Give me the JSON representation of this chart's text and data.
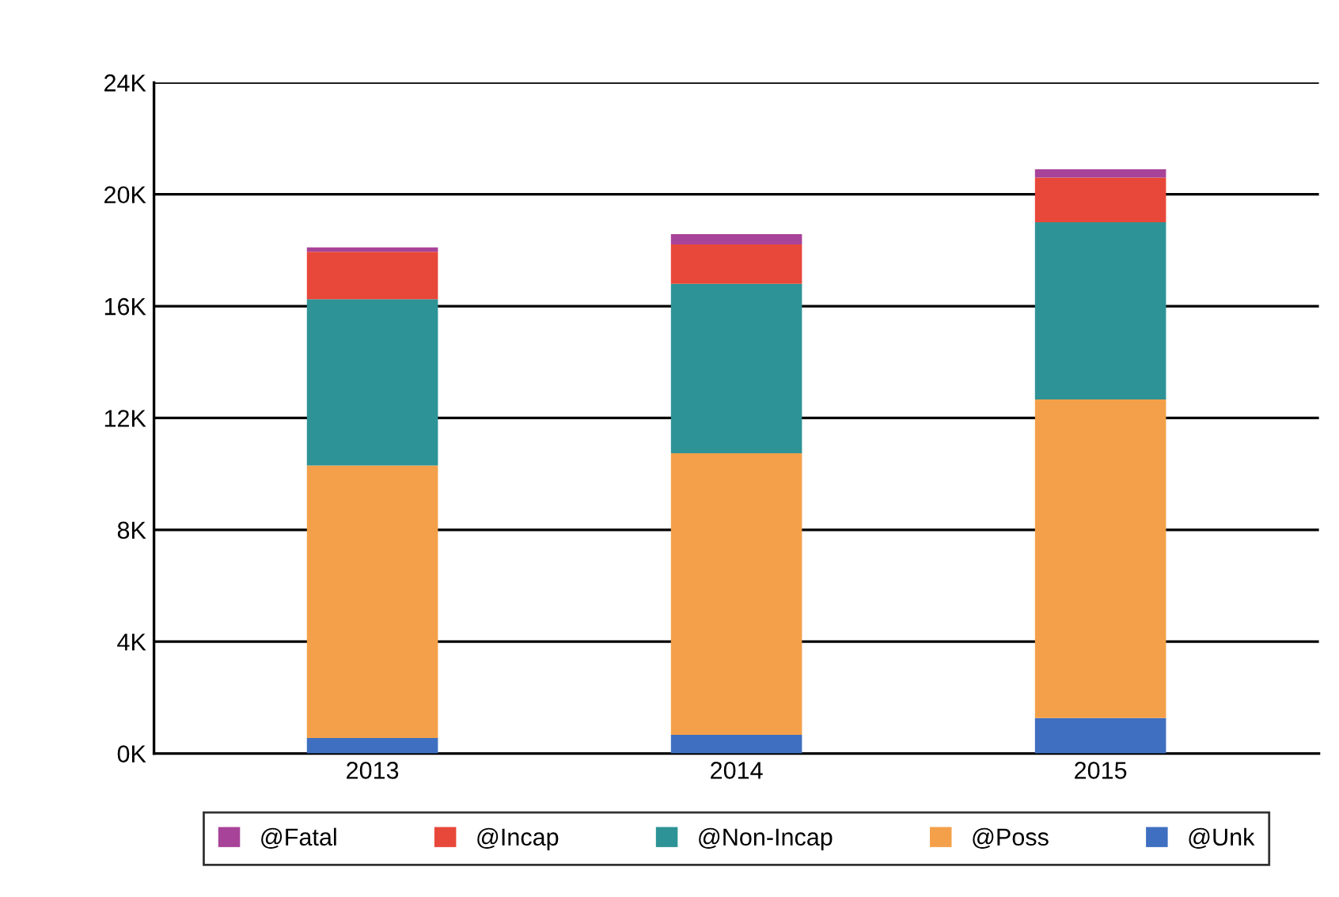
{
  "chart_data": {
    "type": "bar",
    "stacked": true,
    "categories": [
      "2013",
      "2014",
      "2015"
    ],
    "series": [
      {
        "name": "@Unk",
        "color": "#3f6fc0",
        "values": [
          0.55,
          0.67,
          1.27
        ]
      },
      {
        "name": "@Poss",
        "color": "#f4a04a",
        "values": [
          9.75,
          10.07,
          11.39
        ]
      },
      {
        "name": "@Non-Incap",
        "color": "#2e9396",
        "values": [
          5.95,
          6.06,
          6.34
        ]
      },
      {
        "name": "@Incap",
        "color": "#e8483a",
        "values": [
          1.7,
          1.41,
          1.6
        ]
      },
      {
        "name": "@Fatal",
        "color": "#a8439a",
        "values": [
          0.15,
          0.37,
          0.3
        ]
      }
    ],
    "ylim": [
      0,
      24
    ],
    "yticks": [
      {
        "value": 0,
        "label": "0K"
      },
      {
        "value": 4,
        "label": "4K"
      },
      {
        "value": 8,
        "label": "8K"
      },
      {
        "value": 12,
        "label": "12K"
      },
      {
        "value": 16,
        "label": "16K"
      },
      {
        "value": 20,
        "label": "20K"
      },
      {
        "value": 24,
        "label": "24K"
      }
    ],
    "grid": "y",
    "legend": "bottom"
  }
}
